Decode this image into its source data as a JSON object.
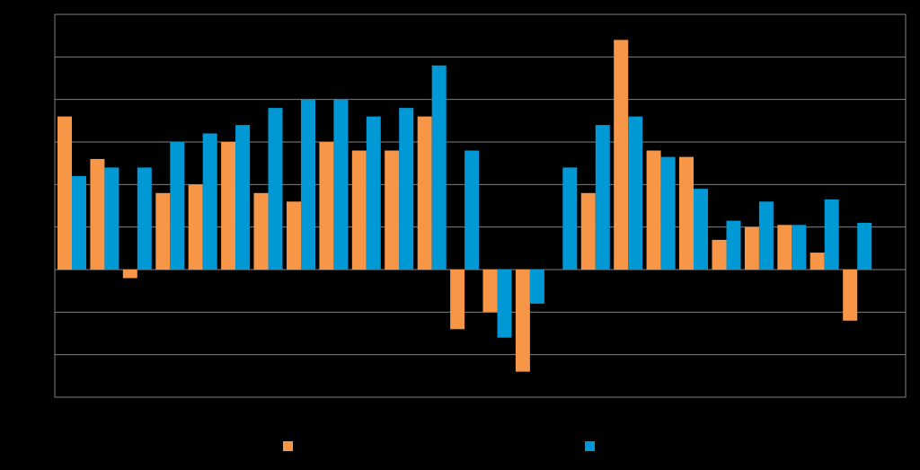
{
  "colors": {
    "background": "#000000",
    "grid": "#7f7f7f",
    "series_1": "#F79646",
    "series_2": "#0099D6"
  },
  "chart_data": {
    "type": "bar",
    "title": "",
    "xlabel": "",
    "ylabel": "",
    "ylim": [
      -3,
      6
    ],
    "grid": true,
    "legend_position": "bottom",
    "categories": [
      "",
      "",
      "",
      "",
      "",
      "",
      "",
      "",
      "",
      "",
      "",
      "",
      "",
      "",
      "",
      "",
      "",
      "",
      "",
      "",
      "",
      "",
      "",
      "",
      "",
      ""
    ],
    "series": [
      {
        "values": [
          3.6,
          2.6,
          -0.2,
          1.8,
          2.0,
          3.0,
          1.8,
          1.6,
          3.0,
          2.8,
          2.8,
          3.6,
          -1.4,
          -1.0,
          -2.4,
          0.0,
          1.8,
          5.4,
          2.8,
          2.65,
          0.7,
          1.0,
          1.05,
          0.4,
          -1.2,
          0.0
        ]
      },
      {
        "values": [
          2.2,
          2.4,
          2.4,
          3.0,
          3.2,
          3.4,
          3.8,
          4.0,
          4.0,
          3.6,
          3.8,
          4.8,
          2.8,
          -1.6,
          -0.8,
          2.4,
          3.4,
          3.6,
          2.65,
          1.9,
          1.15,
          1.6,
          1.05,
          1.65,
          1.1,
          0.0
        ]
      }
    ]
  }
}
